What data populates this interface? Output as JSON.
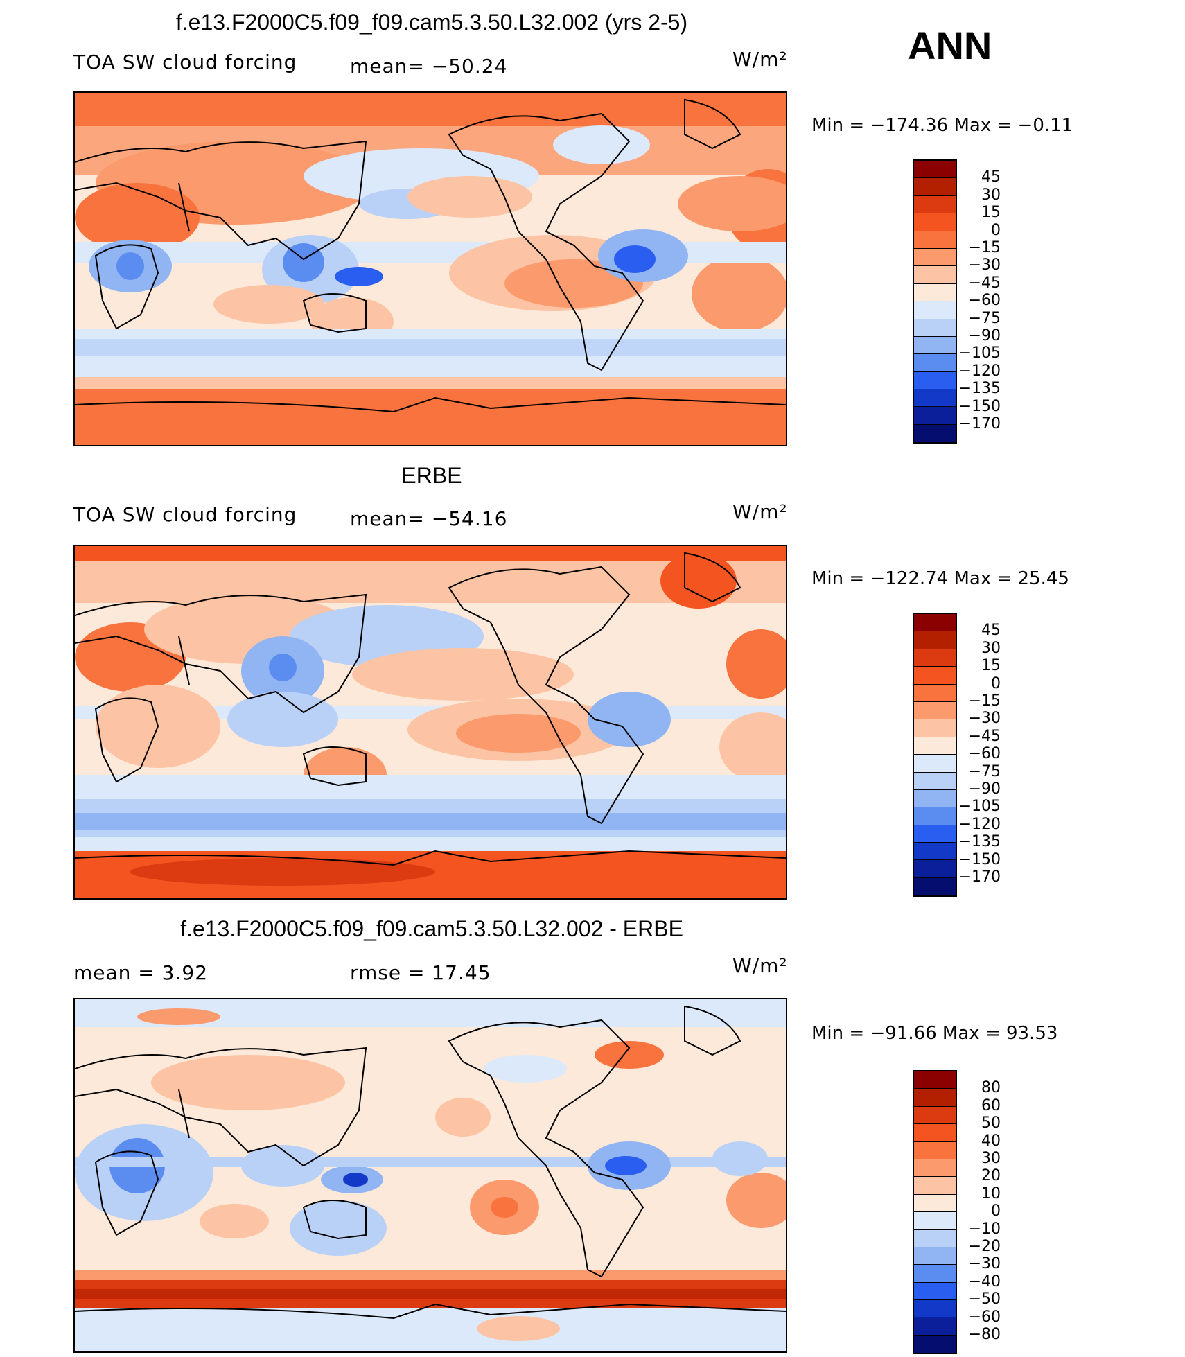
{
  "season": "ANN",
  "units": "W/m²",
  "panels": [
    {
      "title": "f.e13.F2000C5.f09_f09.cam5.3.50.L32.002 (yrs 2-5)",
      "variable": "TOA SW cloud forcing",
      "mean_text": "mean= −50.24",
      "extra_text": "",
      "minmax_text": "Min = −174.36 Max =  −0.11",
      "colorbar": {
        "levels": [
          "45",
          "30",
          "15",
          "0",
          "−15",
          "−30",
          "−45",
          "−60",
          "−75",
          "−90",
          "−105",
          "−120",
          "−135",
          "−150",
          "−170"
        ],
        "colors": [
          "#8b0000",
          "#b22000",
          "#dc3b12",
          "#f4541f",
          "#f8733d",
          "#fb9a6c",
          "#fcc4a4",
          "#fde9d9",
          "#dce9fb",
          "#b9d1f7",
          "#91b4f3",
          "#5b8cf0",
          "#2a5ef0",
          "#1339c8",
          "#0b1f9b",
          "#050d6e"
        ]
      }
    },
    {
      "title": "ERBE",
      "variable": "TOA SW cloud forcing",
      "mean_text": "mean= −54.16",
      "extra_text": "",
      "minmax_text": "Min = −122.74 Max =  25.45",
      "colorbar": {
        "levels": [
          "45",
          "30",
          "15",
          "0",
          "−15",
          "−30",
          "−45",
          "−60",
          "−75",
          "−90",
          "−105",
          "−120",
          "−135",
          "−150",
          "−170"
        ],
        "colors": [
          "#8b0000",
          "#b22000",
          "#dc3b12",
          "#f4541f",
          "#f8733d",
          "#fb9a6c",
          "#fcc4a4",
          "#fde9d9",
          "#dce9fb",
          "#b9d1f7",
          "#91b4f3",
          "#5b8cf0",
          "#2a5ef0",
          "#1339c8",
          "#0b1f9b",
          "#050d6e"
        ]
      }
    },
    {
      "title": "f.e13.F2000C5.f09_f09.cam5.3.50.L32.002 - ERBE",
      "variable": "",
      "mean_text": "mean =    3.92",
      "extra_text": "rmse =   17.45",
      "minmax_text": "Min = −91.66 Max =  93.53",
      "colorbar": {
        "levels": [
          "80",
          "60",
          "50",
          "40",
          "30",
          "20",
          "10",
          "0",
          "−10",
          "−20",
          "−30",
          "−40",
          "−50",
          "−60",
          "−80"
        ],
        "colors": [
          "#8b0000",
          "#b22000",
          "#dc3b12",
          "#f4541f",
          "#f8733d",
          "#fb9a6c",
          "#fcc4a4",
          "#fde9d9",
          "#dce9fb",
          "#b9d1f7",
          "#91b4f3",
          "#5b8cf0",
          "#2a5ef0",
          "#1339c8",
          "#0b1f9b",
          "#050d6e"
        ]
      }
    }
  ]
}
